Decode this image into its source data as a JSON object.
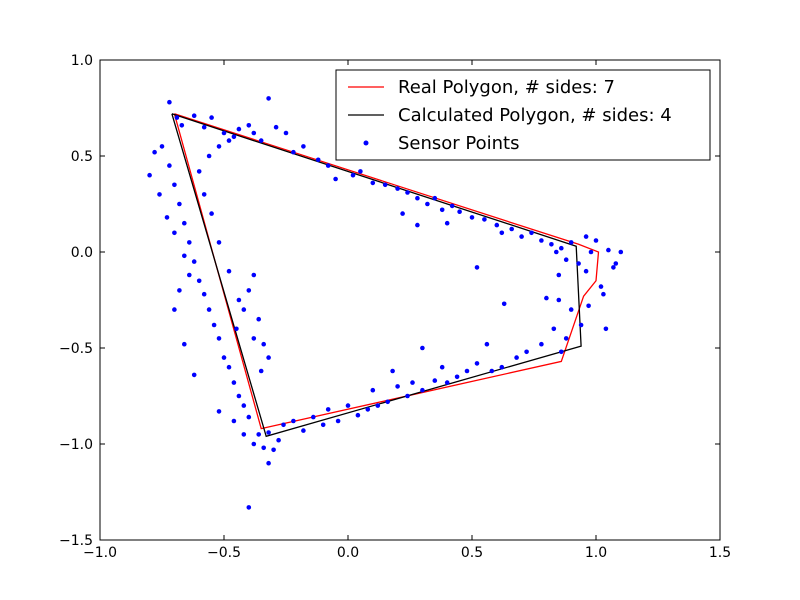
{
  "chart_data": {
    "type": "scatter",
    "title": "",
    "xlabel": "",
    "ylabel": "",
    "xlim": [
      -1.0,
      1.5
    ],
    "ylim": [
      -1.5,
      1.0
    ],
    "xticks": [
      -1.0,
      -0.5,
      0.0,
      0.5,
      1.0,
      1.5
    ],
    "yticks": [
      -1.5,
      -1.0,
      -0.5,
      0.0,
      0.5,
      1.0
    ],
    "xtick_labels": [
      "−1.0",
      "−0.5",
      "0.0",
      "0.5",
      "1.0",
      "1.5"
    ],
    "ytick_labels": [
      "−1.5",
      "−1.0",
      "−0.5",
      "0.0",
      "0.5",
      "1.0"
    ],
    "grid": false,
    "legend_position": "top-right",
    "series": [
      {
        "name": "Real Polygon, # sides: 7",
        "kind": "line",
        "color": "#ff0000",
        "points": [
          [
            -0.7,
            0.72
          ],
          [
            -0.35,
            -0.92
          ],
          [
            0.86,
            -0.57
          ],
          [
            0.95,
            -0.23
          ],
          [
            1.0,
            -0.15
          ],
          [
            1.01,
            0.0
          ],
          [
            0.93,
            0.04
          ],
          [
            -0.7,
            0.72
          ]
        ]
      },
      {
        "name": "Calculated Polygon, # sides: 4",
        "kind": "line",
        "color": "#000000",
        "points": [
          [
            -0.71,
            0.72
          ],
          [
            -0.33,
            -0.96
          ],
          [
            0.94,
            -0.49
          ],
          [
            0.92,
            0.03
          ],
          [
            -0.71,
            0.72
          ]
        ]
      },
      {
        "name": "Sensor Points",
        "kind": "scatter",
        "color": "#0000ff",
        "points": [
          [
            -0.72,
            0.78
          ],
          [
            -0.69,
            0.7
          ],
          [
            -0.67,
            0.66
          ],
          [
            -0.62,
            0.71
          ],
          [
            -0.58,
            0.65
          ],
          [
            -0.55,
            0.7
          ],
          [
            -0.5,
            0.62
          ],
          [
            -0.46,
            0.6
          ],
          [
            -0.4,
            0.66
          ],
          [
            -0.35,
            0.58
          ],
          [
            -0.32,
            0.8
          ],
          [
            -0.29,
            0.65
          ],
          [
            -0.25,
            0.62
          ],
          [
            -0.22,
            0.52
          ],
          [
            -0.18,
            0.55
          ],
          [
            -0.12,
            0.48
          ],
          [
            -0.08,
            0.45
          ],
          [
            -0.05,
            0.38
          ],
          [
            0.02,
            0.4
          ],
          [
            0.05,
            0.42
          ],
          [
            0.1,
            0.36
          ],
          [
            0.15,
            0.35
          ],
          [
            0.2,
            0.33
          ],
          [
            0.24,
            0.31
          ],
          [
            0.28,
            0.28
          ],
          [
            0.32,
            0.25
          ],
          [
            0.35,
            0.28
          ],
          [
            0.38,
            0.22
          ],
          [
            0.42,
            0.24
          ],
          [
            0.45,
            0.21
          ],
          [
            0.5,
            0.18
          ],
          [
            0.55,
            0.17
          ],
          [
            0.6,
            0.14
          ],
          [
            0.62,
            0.1
          ],
          [
            0.66,
            0.12
          ],
          [
            0.7,
            0.08
          ],
          [
            0.74,
            0.1
          ],
          [
            0.78,
            0.06
          ],
          [
            0.82,
            0.04
          ],
          [
            0.86,
            0.02
          ],
          [
            0.9,
            0.05
          ],
          [
            0.96,
            0.08
          ],
          [
            1.0,
            0.06
          ],
          [
            1.05,
            0.01
          ],
          [
            1.08,
            -0.06
          ],
          [
            1.1,
            0.0
          ],
          [
            0.98,
            0.0
          ],
          [
            0.96,
            -0.1
          ],
          [
            0.93,
            -0.06
          ],
          [
            0.88,
            -0.04
          ],
          [
            0.84,
            0.0
          ],
          [
            0.97,
            -0.28
          ],
          [
            1.02,
            -0.18
          ],
          [
            1.04,
            -0.4
          ],
          [
            0.94,
            -0.38
          ],
          [
            0.9,
            -0.3
          ],
          [
            0.85,
            -0.25
          ],
          [
            0.88,
            -0.45
          ],
          [
            0.83,
            -0.4
          ],
          [
            0.86,
            -0.52
          ],
          [
            0.78,
            -0.48
          ],
          [
            0.72,
            -0.52
          ],
          [
            0.68,
            -0.55
          ],
          [
            0.62,
            -0.6
          ],
          [
            0.58,
            -0.62
          ],
          [
            0.56,
            -0.48
          ],
          [
            0.52,
            -0.58
          ],
          [
            0.48,
            -0.62
          ],
          [
            0.44,
            -0.65
          ],
          [
            0.4,
            -0.68
          ],
          [
            0.38,
            -0.6
          ],
          [
            0.35,
            -0.67
          ],
          [
            0.3,
            -0.72
          ],
          [
            0.26,
            -0.68
          ],
          [
            0.24,
            -0.75
          ],
          [
            0.2,
            -0.7
          ],
          [
            0.18,
            -0.62
          ],
          [
            0.16,
            -0.78
          ],
          [
            0.12,
            -0.8
          ],
          [
            0.1,
            -0.72
          ],
          [
            0.08,
            -0.82
          ],
          [
            0.04,
            -0.85
          ],
          [
            0.0,
            -0.8
          ],
          [
            -0.04,
            -0.88
          ],
          [
            -0.08,
            -0.82
          ],
          [
            -0.1,
            -0.9
          ],
          [
            -0.14,
            -0.86
          ],
          [
            -0.18,
            -0.93
          ],
          [
            -0.22,
            -0.88
          ],
          [
            -0.26,
            -0.9
          ],
          [
            -0.28,
            -0.98
          ],
          [
            -0.32,
            -0.94
          ],
          [
            -0.34,
            -1.02
          ],
          [
            -0.36,
            -0.95
          ],
          [
            -0.4,
            -0.86
          ],
          [
            -0.42,
            -0.8
          ],
          [
            -0.44,
            -0.75
          ],
          [
            -0.46,
            -0.68
          ],
          [
            -0.48,
            -0.6
          ],
          [
            -0.5,
            -0.55
          ],
          [
            -0.52,
            -0.45
          ],
          [
            -0.54,
            -0.38
          ],
          [
            -0.56,
            -0.3
          ],
          [
            -0.58,
            -0.22
          ],
          [
            -0.6,
            -0.15
          ],
          [
            -0.62,
            -0.05
          ],
          [
            -0.64,
            0.05
          ],
          [
            -0.66,
            0.15
          ],
          [
            -0.68,
            0.25
          ],
          [
            -0.7,
            0.35
          ],
          [
            -0.72,
            0.45
          ],
          [
            -0.75,
            0.55
          ],
          [
            -0.78,
            0.52
          ],
          [
            -0.8,
            0.4
          ],
          [
            -0.76,
            0.3
          ],
          [
            -0.73,
            0.18
          ],
          [
            -0.7,
            0.1
          ],
          [
            -0.66,
            -0.02
          ],
          [
            -0.64,
            -0.12
          ],
          [
            -0.68,
            -0.2
          ],
          [
            -0.7,
            -0.3
          ],
          [
            -0.66,
            -0.48
          ],
          [
            -0.62,
            -0.64
          ],
          [
            -0.52,
            -0.83
          ],
          [
            -0.46,
            -0.88
          ],
          [
            -0.42,
            -0.95
          ],
          [
            -0.38,
            -1.0
          ],
          [
            -0.32,
            -1.1
          ],
          [
            -0.4,
            -1.33
          ],
          [
            -0.3,
            -1.03
          ],
          [
            -0.45,
            -0.4
          ],
          [
            -0.42,
            -0.3
          ],
          [
            -0.4,
            -0.2
          ],
          [
            -0.38,
            -0.12
          ],
          [
            -0.36,
            -0.35
          ],
          [
            -0.34,
            -0.48
          ],
          [
            -0.32,
            -0.55
          ],
          [
            -0.35,
            -0.62
          ],
          [
            -0.38,
            -0.45
          ],
          [
            -0.44,
            -0.25
          ],
          [
            -0.48,
            -0.1
          ],
          [
            -0.52,
            0.05
          ],
          [
            -0.55,
            0.2
          ],
          [
            -0.58,
            0.3
          ],
          [
            -0.6,
            0.42
          ],
          [
            -0.56,
            0.5
          ],
          [
            -0.52,
            0.55
          ],
          [
            -0.48,
            0.58
          ],
          [
            -0.44,
            0.64
          ],
          [
            -0.38,
            0.62
          ],
          [
            0.22,
            0.2
          ],
          [
            0.28,
            0.14
          ],
          [
            0.4,
            0.15
          ],
          [
            0.52,
            -0.08
          ],
          [
            0.63,
            -0.27
          ],
          [
            0.8,
            -0.24
          ],
          [
            0.85,
            -0.12
          ],
          [
            1.03,
            -0.22
          ],
          [
            1.07,
            -0.08
          ],
          [
            0.3,
            -0.5
          ]
        ]
      }
    ]
  }
}
